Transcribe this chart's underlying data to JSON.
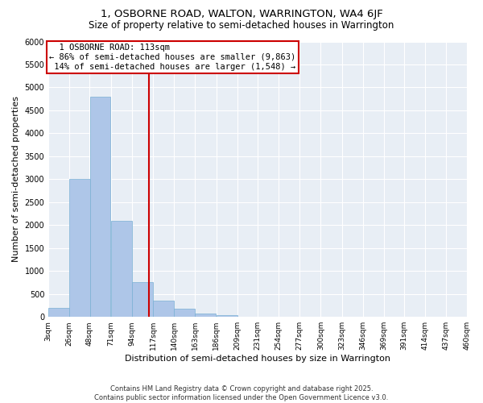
{
  "title": "1, OSBORNE ROAD, WALTON, WARRINGTON, WA4 6JF",
  "subtitle": "Size of property relative to semi-detached houses in Warrington",
  "xlabel": "Distribution of semi-detached houses by size in Warrington",
  "ylabel": "Number of semi-detached properties",
  "property_size": 113,
  "property_label": "1 OSBORNE ROAD: 113sqm",
  "pct_smaller": 86,
  "pct_larger": 14,
  "n_smaller": 9863,
  "n_larger": 1548,
  "bins": [
    3,
    26,
    48,
    71,
    94,
    117,
    140,
    163,
    186,
    209,
    231,
    254,
    277,
    300,
    323,
    346,
    369,
    391,
    414,
    437,
    460
  ],
  "bin_labels": [
    "3sqm",
    "26sqm",
    "48sqm",
    "71sqm",
    "94sqm",
    "117sqm",
    "140sqm",
    "163sqm",
    "186sqm",
    "209sqm",
    "231sqm",
    "254sqm",
    "277sqm",
    "300sqm",
    "323sqm",
    "346sqm",
    "369sqm",
    "391sqm",
    "414sqm",
    "437sqm",
    "460sqm"
  ],
  "counts": [
    200,
    3000,
    4800,
    2100,
    750,
    350,
    180,
    75,
    40,
    10,
    5,
    3,
    2,
    1,
    1,
    0,
    0,
    0,
    0,
    0
  ],
  "bar_color": "#aec6e8",
  "bar_edge_color": "#7ab0d4",
  "vline_color": "#cc0000",
  "annotation_box_color": "#cc0000",
  "bg_color": "#e8eef5",
  "grid_color": "#ffffff",
  "ylim": [
    0,
    6000
  ],
  "yticks": [
    0,
    500,
    1000,
    1500,
    2000,
    2500,
    3000,
    3500,
    4000,
    4500,
    5000,
    5500,
    6000
  ],
  "footer_text": "Contains HM Land Registry data © Crown copyright and database right 2025.\nContains public sector information licensed under the Open Government Licence v3.0.",
  "title_fontsize": 9.5,
  "subtitle_fontsize": 8.5,
  "axis_label_fontsize": 8,
  "tick_fontsize": 7,
  "annotation_fontsize": 7.5
}
